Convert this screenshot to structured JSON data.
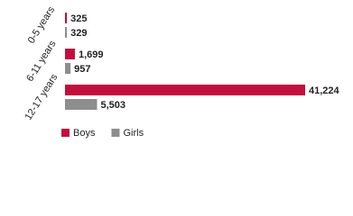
{
  "chart_data": {
    "type": "bar",
    "orientation": "horizontal",
    "categories": [
      "0-5 years",
      "6-11 years",
      "12-17 years"
    ],
    "series": [
      {
        "name": "Boys",
        "color": "#c1103d",
        "values": [
          325,
          1699,
          41224
        ],
        "value_labels": [
          "325",
          "1,699",
          "41,224"
        ]
      },
      {
        "name": "Girls",
        "color": "#8e8e8e",
        "values": [
          329,
          957,
          5503
        ],
        "value_labels": [
          "329",
          "957",
          "5,503"
        ]
      }
    ],
    "legend": "bottom-left"
  }
}
